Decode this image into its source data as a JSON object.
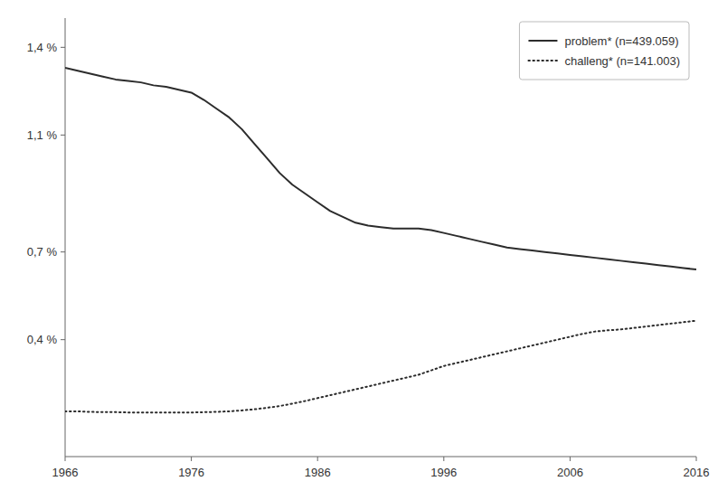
{
  "chart_data": {
    "type": "line",
    "x": [
      1966,
      1967,
      1968,
      1969,
      1970,
      1971,
      1972,
      1973,
      1974,
      1975,
      1976,
      1977,
      1978,
      1979,
      1980,
      1981,
      1982,
      1983,
      1984,
      1985,
      1986,
      1987,
      1988,
      1989,
      1990,
      1991,
      1992,
      1993,
      1994,
      1995,
      1996,
      1997,
      1998,
      1999,
      2000,
      2001,
      2002,
      2003,
      2004,
      2005,
      2006,
      2007,
      2008,
      2009,
      2010,
      2011,
      2012,
      2013,
      2014,
      2015,
      2016
    ],
    "series": [
      {
        "name": "problem* (n=439.059)",
        "color": "#2c2c2c",
        "line_style": "solid",
        "values": [
          1.33,
          1.32,
          1.31,
          1.3,
          1.29,
          1.285,
          1.28,
          1.27,
          1.265,
          1.255,
          1.245,
          1.22,
          1.19,
          1.16,
          1.12,
          1.07,
          1.02,
          0.97,
          0.93,
          0.9,
          0.87,
          0.84,
          0.82,
          0.8,
          0.79,
          0.785,
          0.78,
          0.78,
          0.78,
          0.775,
          0.765,
          0.755,
          0.745,
          0.735,
          0.725,
          0.715,
          0.71,
          0.705,
          0.7,
          0.695,
          0.69,
          0.685,
          0.68,
          0.675,
          0.67,
          0.665,
          0.66,
          0.655,
          0.65,
          0.645,
          0.64
        ]
      },
      {
        "name": "challeng* (n=141.003)",
        "color": "#2c2c2c",
        "line_style": "dotted",
        "values": [
          0.155,
          0.155,
          0.153,
          0.152,
          0.152,
          0.151,
          0.151,
          0.151,
          0.151,
          0.151,
          0.151,
          0.152,
          0.153,
          0.155,
          0.158,
          0.162,
          0.167,
          0.173,
          0.181,
          0.19,
          0.2,
          0.21,
          0.22,
          0.23,
          0.24,
          0.25,
          0.26,
          0.27,
          0.28,
          0.295,
          0.31,
          0.32,
          0.33,
          0.34,
          0.35,
          0.36,
          0.37,
          0.38,
          0.39,
          0.4,
          0.41,
          0.42,
          0.428,
          0.432,
          0.435,
          0.44,
          0.445,
          0.45,
          0.455,
          0.46,
          0.465
        ]
      }
    ],
    "xlim": [
      1966,
      2016
    ],
    "ylim": [
      0.0,
      1.5
    ],
    "xticks": [
      1966,
      1976,
      1986,
      1996,
      2006,
      2016
    ],
    "yticks": [
      {
        "value": 0.4,
        "label": "0,4 %"
      },
      {
        "value": 0.7,
        "label": "0,7 %"
      },
      {
        "value": 1.1,
        "label": "1,1 %"
      },
      {
        "value": 1.4,
        "label": "1,4 %"
      }
    ],
    "grid": false,
    "legend": "upper right"
  }
}
